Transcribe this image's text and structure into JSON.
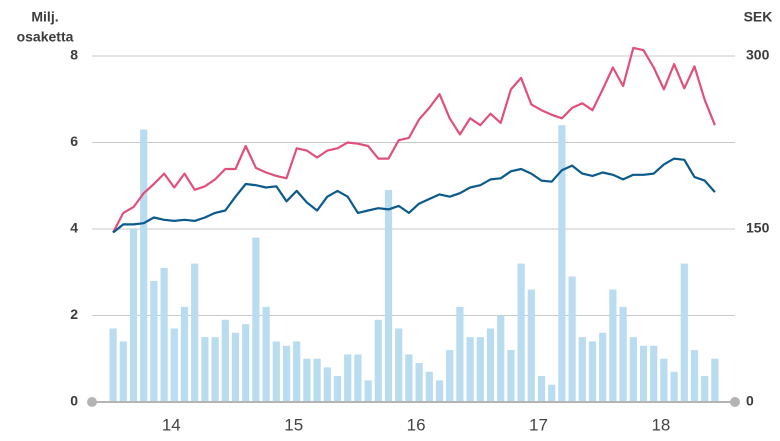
{
  "chart_data": {
    "type": "bar",
    "ylabel": [
      "Milj.",
      "osaketta"
    ],
    "y2label": "SEK",
    "categories": [
      null,
      null,
      null,
      null,
      null,
      null,
      "14",
      null,
      null,
      null,
      null,
      null,
      null,
      null,
      null,
      null,
      null,
      null,
      "15",
      null,
      null,
      null,
      null,
      null,
      null,
      null,
      null,
      null,
      null,
      null,
      "16",
      null,
      null,
      null,
      null,
      null,
      null,
      null,
      null,
      null,
      null,
      null,
      "17",
      null,
      null,
      null,
      null,
      null,
      null,
      null,
      null,
      null,
      null,
      null,
      "18",
      null,
      null,
      null,
      null,
      null
    ],
    "series": [
      {
        "type": "bar",
        "color": "#b9dcf0",
        "axis": "y",
        "values": [
          1.7,
          1.4,
          4.0,
          6.3,
          2.8,
          3.1,
          1.7,
          2.2,
          3.2,
          1.5,
          1.5,
          1.9,
          1.6,
          1.8,
          3.8,
          2.2,
          1.4,
          1.3,
          1.4,
          1.0,
          1.0,
          0.8,
          0.6,
          1.1,
          1.1,
          0.5,
          1.9,
          4.9,
          1.7,
          1.1,
          0.9,
          0.7,
          0.5,
          1.2,
          2.2,
          1.5,
          1.5,
          1.7,
          2.0,
          1.2,
          3.2,
          2.6,
          0.6,
          0.4,
          6.4,
          2.9,
          1.5,
          1.4,
          1.6,
          2.6,
          2.2,
          1.5,
          1.3,
          1.3,
          1.0,
          0.7,
          3.2,
          1.2,
          0.6,
          1.0
        ]
      },
      {
        "type": "line",
        "color": "#e0507a",
        "axis": "y2",
        "values": [
          147,
          164,
          169,
          181,
          189,
          198,
          186,
          198,
          184,
          187,
          193,
          202,
          202,
          222,
          203,
          199,
          196,
          194,
          220,
          218,
          212,
          218,
          220,
          225,
          224,
          222,
          211,
          211,
          227,
          229,
          245,
          255,
          267,
          246,
          232,
          246,
          240,
          250,
          242,
          271,
          281,
          258,
          253,
          249,
          246,
          255,
          259,
          253,
          271,
          290,
          274,
          307,
          305,
          290,
          271,
          293,
          272,
          291,
          262,
          240
        ]
      },
      {
        "type": "line",
        "color": "#0a5a8c",
        "axis": "y2",
        "values": [
          147,
          154,
          154,
          155,
          160,
          158,
          157,
          158,
          157,
          160,
          164,
          166,
          178,
          189,
          188,
          186,
          187,
          174,
          183,
          173,
          166,
          178,
          183,
          178,
          164,
          166,
          168,
          167,
          170,
          164,
          172,
          176,
          180,
          178,
          181,
          186,
          188,
          193,
          194,
          200,
          202,
          198,
          192,
          191,
          201,
          205,
          198,
          196,
          199,
          197,
          193,
          197,
          197,
          198,
          206,
          211,
          210,
          195,
          192,
          182
        ]
      }
    ],
    "ylim": [
      0,
      8
    ],
    "yticks": [
      0,
      2,
      4,
      6,
      8
    ],
    "y2lim": [
      0,
      300
    ],
    "y2ticks": [
      0,
      150,
      300
    ],
    "grid": true
  }
}
